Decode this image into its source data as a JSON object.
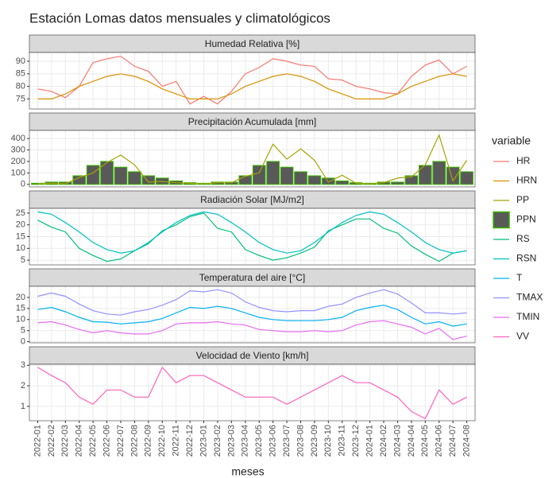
{
  "chart_data": {
    "type": "facet",
    "title": "Estación Lomas datos mensuales y climatológicos",
    "x_label": "meses",
    "legend_title": "variable",
    "grid": true,
    "categories": [
      "2022-01",
      "2022-02",
      "2022-03",
      "2022-04",
      "2022-05",
      "2022-06",
      "2022-07",
      "2022-08",
      "2022-09",
      "2022-10",
      "2022-11",
      "2022-12",
      "2023-01",
      "2023-02",
      "2023-03",
      "2023-04",
      "2023-05",
      "2023-06",
      "2023-07",
      "2023-08",
      "2023-09",
      "2023-10",
      "2023-11",
      "2023-12",
      "2024-01",
      "2024-02",
      "2024-03",
      "2024-04",
      "2024-05",
      "2024-06",
      "2024-07",
      "2024-08"
    ],
    "panels": [
      {
        "title": "Humedad Relativa [%]",
        "ylim": [
          71,
          93.5
        ],
        "yticks": [
          75,
          80,
          85,
          90
        ],
        "series": [
          {
            "name": "HR",
            "kind": "line",
            "color": "#F8766D",
            "values": [
              79,
              78,
              75.5,
              80,
              89.5,
              91,
              92,
              88,
              86,
              80,
              82,
              73,
              76,
              73,
              78,
              85,
              87.5,
              91,
              90,
              88.5,
              88,
              83,
              82.5,
              80,
              79,
              77.5,
              77,
              84,
              88.5,
              90.5,
              85,
              88
            ]
          },
          {
            "name": "HRN",
            "kind": "line",
            "color": "#D89000",
            "values": [
              75,
              75,
              77,
              80,
              82,
              84,
              85,
              84,
              82,
              79,
              77,
              75,
              75,
              75,
              77,
              80,
              82,
              84,
              85,
              84,
              82,
              79,
              77,
              75,
              75,
              75,
              77,
              80,
              82,
              84,
              85,
              84
            ]
          }
        ]
      },
      {
        "title": "Precipitación Acumulada [mm]",
        "ylim": [
          -22,
          470
        ],
        "yticks": [
          0,
          100,
          200,
          300,
          400
        ],
        "series": [
          {
            "name": "PP",
            "kind": "line",
            "color": "#A3A500",
            "values": [
              5,
              10,
              5,
              60,
              100,
              190,
              255,
              170,
              20,
              25,
              15,
              10,
              5,
              15,
              15,
              70,
              100,
              350,
              220,
              310,
              210,
              20,
              80,
              10,
              5,
              15,
              55,
              65,
              170,
              430,
              30,
              210
            ]
          },
          {
            "name": "PPN",
            "kind": "bar",
            "color": "#39B600",
            "fill": "#595959",
            "values": [
              10,
              20,
              20,
              75,
              165,
              200,
              150,
              110,
              75,
              55,
              30,
              15,
              10,
              20,
              20,
              75,
              165,
              200,
              150,
              110,
              75,
              55,
              30,
              15,
              10,
              20,
              20,
              75,
              165,
              200,
              150,
              110
            ]
          }
        ]
      },
      {
        "title": "Radiación Solar [MJ/m2]",
        "ylim": [
          3,
          27
        ],
        "yticks": [
          5,
          10,
          15,
          20,
          25
        ],
        "series": [
          {
            "name": "RS",
            "kind": "line",
            "color": "#00BF7D",
            "values": [
              22,
              19,
              17,
              10,
              7,
              4.5,
              5.5,
              9,
              12,
              17.5,
              20,
              23.5,
              25,
              18.5,
              17,
              9.5,
              7,
              5,
              6,
              8,
              10.5,
              17.5,
              20,
              22.5,
              22.5,
              18.5,
              16.5,
              11,
              7.5,
              4.5,
              8,
              9
            ]
          },
          {
            "name": "RSN",
            "kind": "line",
            "color": "#00BFC4",
            "values": [
              25.5,
              24.5,
              21,
              17,
              12.5,
              9.5,
              8,
              9,
              12.5,
              17,
              21,
              24,
              25.5,
              24.5,
              21,
              17,
              12.5,
              9.5,
              8,
              9,
              12.5,
              17,
              21,
              24,
              25.5,
              24.5,
              21,
              17,
              12.5,
              9.5,
              8,
              9
            ]
          }
        ]
      },
      {
        "title": "Temperatura del aire [°C]",
        "ylim": [
          -0.5,
          25
        ],
        "yticks": [
          0,
          5,
          10,
          15,
          20
        ],
        "series": [
          {
            "name": "T",
            "kind": "line",
            "color": "#00B0F6",
            "values": [
              14.5,
              15.5,
              13.5,
              11,
              9,
              8.8,
              8,
              8.5,
              9,
              10.5,
              13,
              15.5,
              15,
              16,
              15,
              13,
              11,
              10,
              9.5,
              9.5,
              9.5,
              10,
              11,
              14,
              15.5,
              16.5,
              14.5,
              11,
              8,
              9,
              7,
              8
            ]
          },
          {
            "name": "TMAX",
            "kind": "line",
            "color": "#9590FF",
            "values": [
              20.5,
              22,
              20.5,
              17,
              14,
              12.5,
              12,
              13.5,
              14.5,
              16.5,
              19,
              23,
              22.5,
              23.5,
              22,
              18,
              15.5,
              14,
              13.5,
              14,
              14,
              16,
              17,
              20,
              22,
              23.5,
              21.5,
              17.5,
              13,
              13,
              12.5,
              13
            ]
          },
          {
            "name": "TMIN",
            "kind": "line",
            "color": "#E76BF3",
            "values": [
              8.5,
              9,
              7.5,
              5.5,
              4,
              5,
              4,
              3.5,
              3.5,
              5,
              8,
              8.5,
              8.5,
              9,
              8,
              7.5,
              5.5,
              5,
              4.5,
              4.5,
              5,
              4.5,
              5,
              7.5,
              9,
              9.5,
              8,
              6.5,
              3.5,
              6,
              1,
              2.5
            ]
          }
        ]
      },
      {
        "title": "Velocidad de Viento [km/h]",
        "ylim": [
          0.3,
          3.05
        ],
        "yticks": [
          1,
          2,
          3
        ],
        "series": [
          {
            "name": "VV",
            "kind": "line",
            "color": "#FF62BC",
            "values": [
              2.9,
              2.5,
              2.15,
              1.45,
              1.1,
              1.8,
              1.8,
              1.45,
              1.45,
              2.9,
              2.15,
              2.5,
              2.5,
              2.15,
              1.8,
              1.45,
              1.45,
              1.45,
              1.1,
              1.45,
              1.8,
              2.15,
              2.5,
              2.15,
              2.15,
              1.8,
              1.45,
              0.75,
              0.4,
              1.8,
              1.1,
              1.45
            ]
          }
        ]
      }
    ]
  }
}
